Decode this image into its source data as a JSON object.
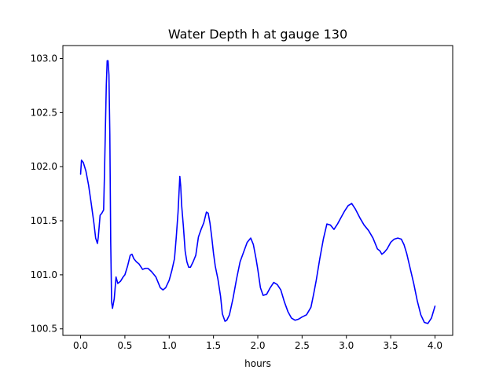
{
  "chart_data": {
    "type": "line",
    "title": "Water Depth h at gauge 130",
    "xlabel": "hours",
    "ylabel": "",
    "xlim": [
      -0.2,
      4.2
    ],
    "ylim": [
      100.44,
      103.12
    ],
    "grid": false,
    "xticks": [
      0.0,
      0.5,
      1.0,
      1.5,
      2.0,
      2.5,
      3.0,
      3.5,
      4.0
    ],
    "xtick_labels": [
      "0.0",
      "0.5",
      "1.0",
      "1.5",
      "2.0",
      "2.5",
      "3.0",
      "3.5",
      "4.0"
    ],
    "yticks": [
      100.5,
      101.0,
      101.5,
      102.0,
      102.5,
      103.0
    ],
    "ytick_labels": [
      "100.5",
      "101.0",
      "101.5",
      "102.0",
      "102.5",
      "103.0"
    ],
    "series": [
      {
        "color": "#0000ff",
        "x": [
          0.0,
          0.01,
          0.03,
          0.06,
          0.09,
          0.12,
          0.15,
          0.17,
          0.19,
          0.2,
          0.22,
          0.24,
          0.26,
          0.27,
          0.28,
          0.29,
          0.3,
          0.31,
          0.32,
          0.33,
          0.34,
          0.35,
          0.36,
          0.38,
          0.4,
          0.42,
          0.45,
          0.48,
          0.5,
          0.53,
          0.56,
          0.58,
          0.6,
          0.63,
          0.66,
          0.7,
          0.73,
          0.76,
          0.8,
          0.85,
          0.9,
          0.93,
          0.96,
          1.0,
          1.03,
          1.06,
          1.08,
          1.1,
          1.12,
          1.13,
          1.14,
          1.16,
          1.18,
          1.2,
          1.22,
          1.24,
          1.27,
          1.3,
          1.33,
          1.36,
          1.39,
          1.42,
          1.44,
          1.46,
          1.48,
          1.5,
          1.52,
          1.55,
          1.58,
          1.6,
          1.63,
          1.65,
          1.68,
          1.72,
          1.76,
          1.8,
          1.84,
          1.88,
          1.92,
          1.95,
          1.98,
          2.0,
          2.03,
          2.06,
          2.1,
          2.14,
          2.18,
          2.22,
          2.26,
          2.3,
          2.34,
          2.38,
          2.42,
          2.46,
          2.5,
          2.55,
          2.6,
          2.63,
          2.66,
          2.7,
          2.74,
          2.78,
          2.82,
          2.86,
          2.9,
          2.94,
          2.98,
          3.02,
          3.06,
          3.1,
          3.15,
          3.2,
          3.25,
          3.3,
          3.35,
          3.38,
          3.4,
          3.43,
          3.46,
          3.5,
          3.54,
          3.58,
          3.62,
          3.65,
          3.68,
          3.72,
          3.76,
          3.8,
          3.84,
          3.88,
          3.92,
          3.96,
          4.0
        ],
        "y": [
          101.93,
          102.06,
          102.04,
          101.96,
          101.83,
          101.66,
          101.48,
          101.34,
          101.29,
          101.35,
          101.55,
          101.57,
          101.6,
          101.95,
          102.35,
          102.75,
          102.98,
          102.98,
          102.85,
          102.3,
          101.3,
          100.75,
          100.69,
          100.78,
          100.98,
          100.92,
          100.94,
          100.98,
          101.0,
          101.08,
          101.18,
          101.19,
          101.15,
          101.12,
          101.1,
          101.05,
          101.06,
          101.06,
          101.03,
          100.98,
          100.88,
          100.86,
          100.88,
          100.95,
          101.04,
          101.15,
          101.35,
          101.58,
          101.91,
          101.82,
          101.65,
          101.45,
          101.22,
          101.12,
          101.07,
          101.07,
          101.12,
          101.18,
          101.35,
          101.42,
          101.48,
          101.58,
          101.57,
          101.48,
          101.35,
          101.2,
          101.08,
          100.96,
          100.8,
          100.64,
          100.57,
          100.58,
          100.63,
          100.78,
          100.96,
          101.12,
          101.21,
          101.3,
          101.34,
          101.28,
          101.15,
          101.05,
          100.88,
          100.81,
          100.82,
          100.88,
          100.93,
          100.91,
          100.86,
          100.75,
          100.66,
          100.6,
          100.58,
          100.59,
          100.61,
          100.63,
          100.7,
          100.82,
          100.95,
          101.15,
          101.33,
          101.47,
          101.46,
          101.42,
          101.47,
          101.53,
          101.59,
          101.64,
          101.66,
          101.61,
          101.53,
          101.46,
          101.41,
          101.34,
          101.24,
          101.22,
          101.19,
          101.21,
          101.24,
          101.3,
          101.33,
          101.34,
          101.33,
          101.28,
          101.2,
          101.06,
          100.92,
          100.76,
          100.63,
          100.56,
          100.55,
          100.6,
          100.71
        ]
      }
    ]
  }
}
